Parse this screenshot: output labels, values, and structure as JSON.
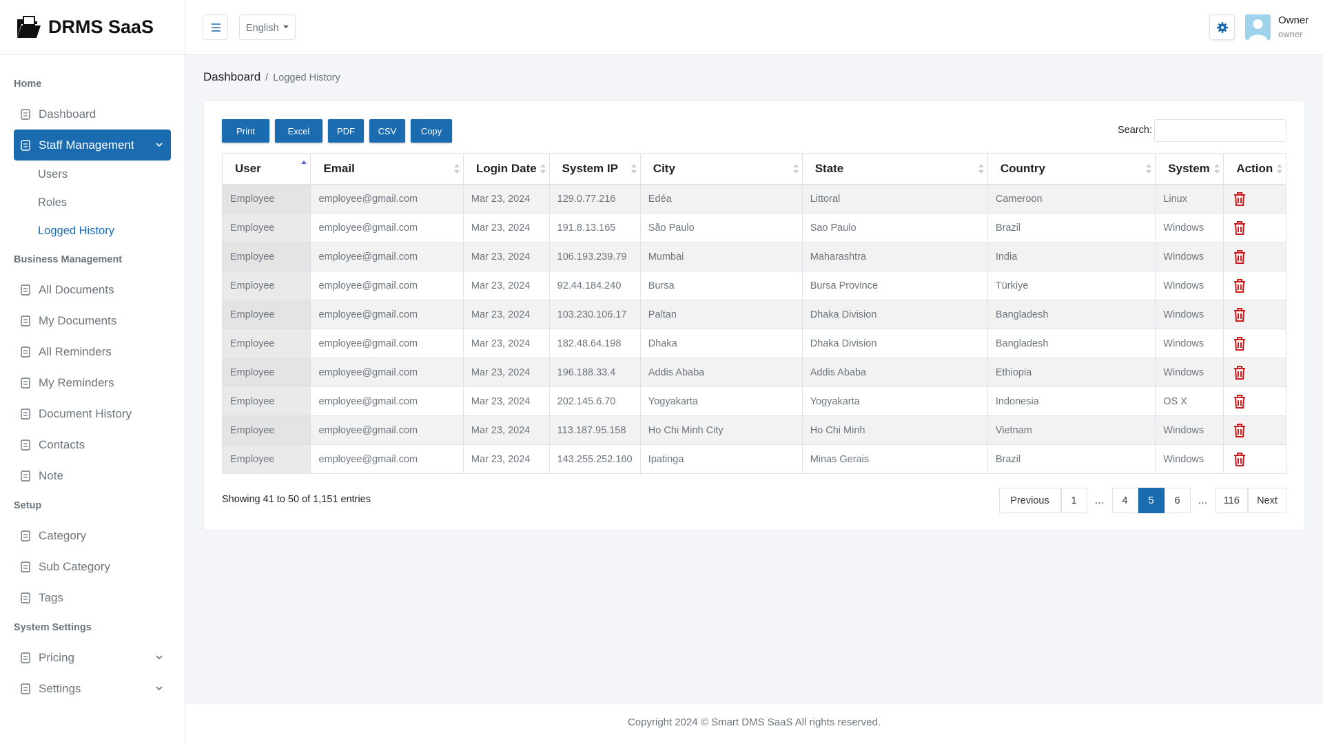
{
  "brand": "DRMS SaaS",
  "header": {
    "language": "English",
    "user_name": "Owner",
    "user_role": "owner"
  },
  "sidebar": [
    {
      "title": "Home",
      "items": [
        {
          "label": "Dashboard"
        },
        {
          "label": "Staff Management",
          "active": true,
          "expandable": true,
          "children": [
            {
              "label": "Users"
            },
            {
              "label": "Roles"
            },
            {
              "label": "Logged History",
              "active": true
            }
          ]
        }
      ]
    },
    {
      "title": "Business Management",
      "items": [
        {
          "label": "All Documents"
        },
        {
          "label": "My Documents"
        },
        {
          "label": "All Reminders"
        },
        {
          "label": "My Reminders"
        },
        {
          "label": "Document History"
        },
        {
          "label": "Contacts"
        },
        {
          "label": "Note"
        }
      ]
    },
    {
      "title": "Setup",
      "items": [
        {
          "label": "Category"
        },
        {
          "label": "Sub Category"
        },
        {
          "label": "Tags"
        }
      ]
    },
    {
      "title": "System Settings",
      "items": [
        {
          "label": "Pricing",
          "expandable": true
        },
        {
          "label": "Settings",
          "expandable": true
        }
      ]
    }
  ],
  "breadcrumb": [
    "Dashboard",
    "Logged History"
  ],
  "table": {
    "buttons": [
      "Print",
      "Excel",
      "PDF",
      "CSV",
      "Copy"
    ],
    "search_label": "Search:",
    "columns": [
      {
        "label": "User",
        "sort": "asc"
      },
      {
        "label": "Email"
      },
      {
        "label": "Login Date"
      },
      {
        "label": "System IP"
      },
      {
        "label": "City"
      },
      {
        "label": "State"
      },
      {
        "label": "Country"
      },
      {
        "label": "System"
      },
      {
        "label": "Action"
      }
    ],
    "rows": [
      [
        "Employee",
        "employee@gmail.com",
        "Mar 23, 2024",
        "129.0.77.216",
        "Edéa",
        "Littoral",
        "Cameroon",
        "Linux"
      ],
      [
        "Employee",
        "employee@gmail.com",
        "Mar 23, 2024",
        "191.8.13.165",
        "São Paulo",
        "Sao Paulo",
        "Brazil",
        "Windows"
      ],
      [
        "Employee",
        "employee@gmail.com",
        "Mar 23, 2024",
        "106.193.239.79",
        "Mumbai",
        "Maharashtra",
        "India",
        "Windows"
      ],
      [
        "Employee",
        "employee@gmail.com",
        "Mar 23, 2024",
        "92.44.184.240",
        "Bursa",
        "Bursa Province",
        "Türkiye",
        "Windows"
      ],
      [
        "Employee",
        "employee@gmail.com",
        "Mar 23, 2024",
        "103.230.106.17",
        "Paltan",
        "Dhaka Division",
        "Bangladesh",
        "Windows"
      ],
      [
        "Employee",
        "employee@gmail.com",
        "Mar 23, 2024",
        "182.48.64.198",
        "Dhaka",
        "Dhaka Division",
        "Bangladesh",
        "Windows"
      ],
      [
        "Employee",
        "employee@gmail.com",
        "Mar 23, 2024",
        "196.188.33.4",
        "Addis Ababa",
        "Addis Ababa",
        "Ethiopia",
        "Windows"
      ],
      [
        "Employee",
        "employee@gmail.com",
        "Mar 23, 2024",
        "202.145.6.70",
        "Yogyakarta",
        "Yogyakarta",
        "Indonesia",
        "OS X"
      ],
      [
        "Employee",
        "employee@gmail.com",
        "Mar 23, 2024",
        "113.187.95.158",
        "Ho Chi Minh City",
        "Ho Chi Minh",
        "Vietnam",
        "Windows"
      ],
      [
        "Employee",
        "employee@gmail.com",
        "Mar 23, 2024",
        "143.255.252.160",
        "Ipatinga",
        "Minas Gerais",
        "Brazil",
        "Windows"
      ]
    ],
    "info": "Showing 41 to 50 of 1,151 entries",
    "pagination": [
      {
        "label": "Previous"
      },
      {
        "label": "1"
      },
      {
        "label": "…"
      },
      {
        "label": "4"
      },
      {
        "label": "5",
        "active": true
      },
      {
        "label": "6"
      },
      {
        "label": "…"
      },
      {
        "label": "116"
      },
      {
        "label": "Next"
      }
    ]
  },
  "footer": "Copyright 2024 © Smart DMS SaaS All rights reserved."
}
